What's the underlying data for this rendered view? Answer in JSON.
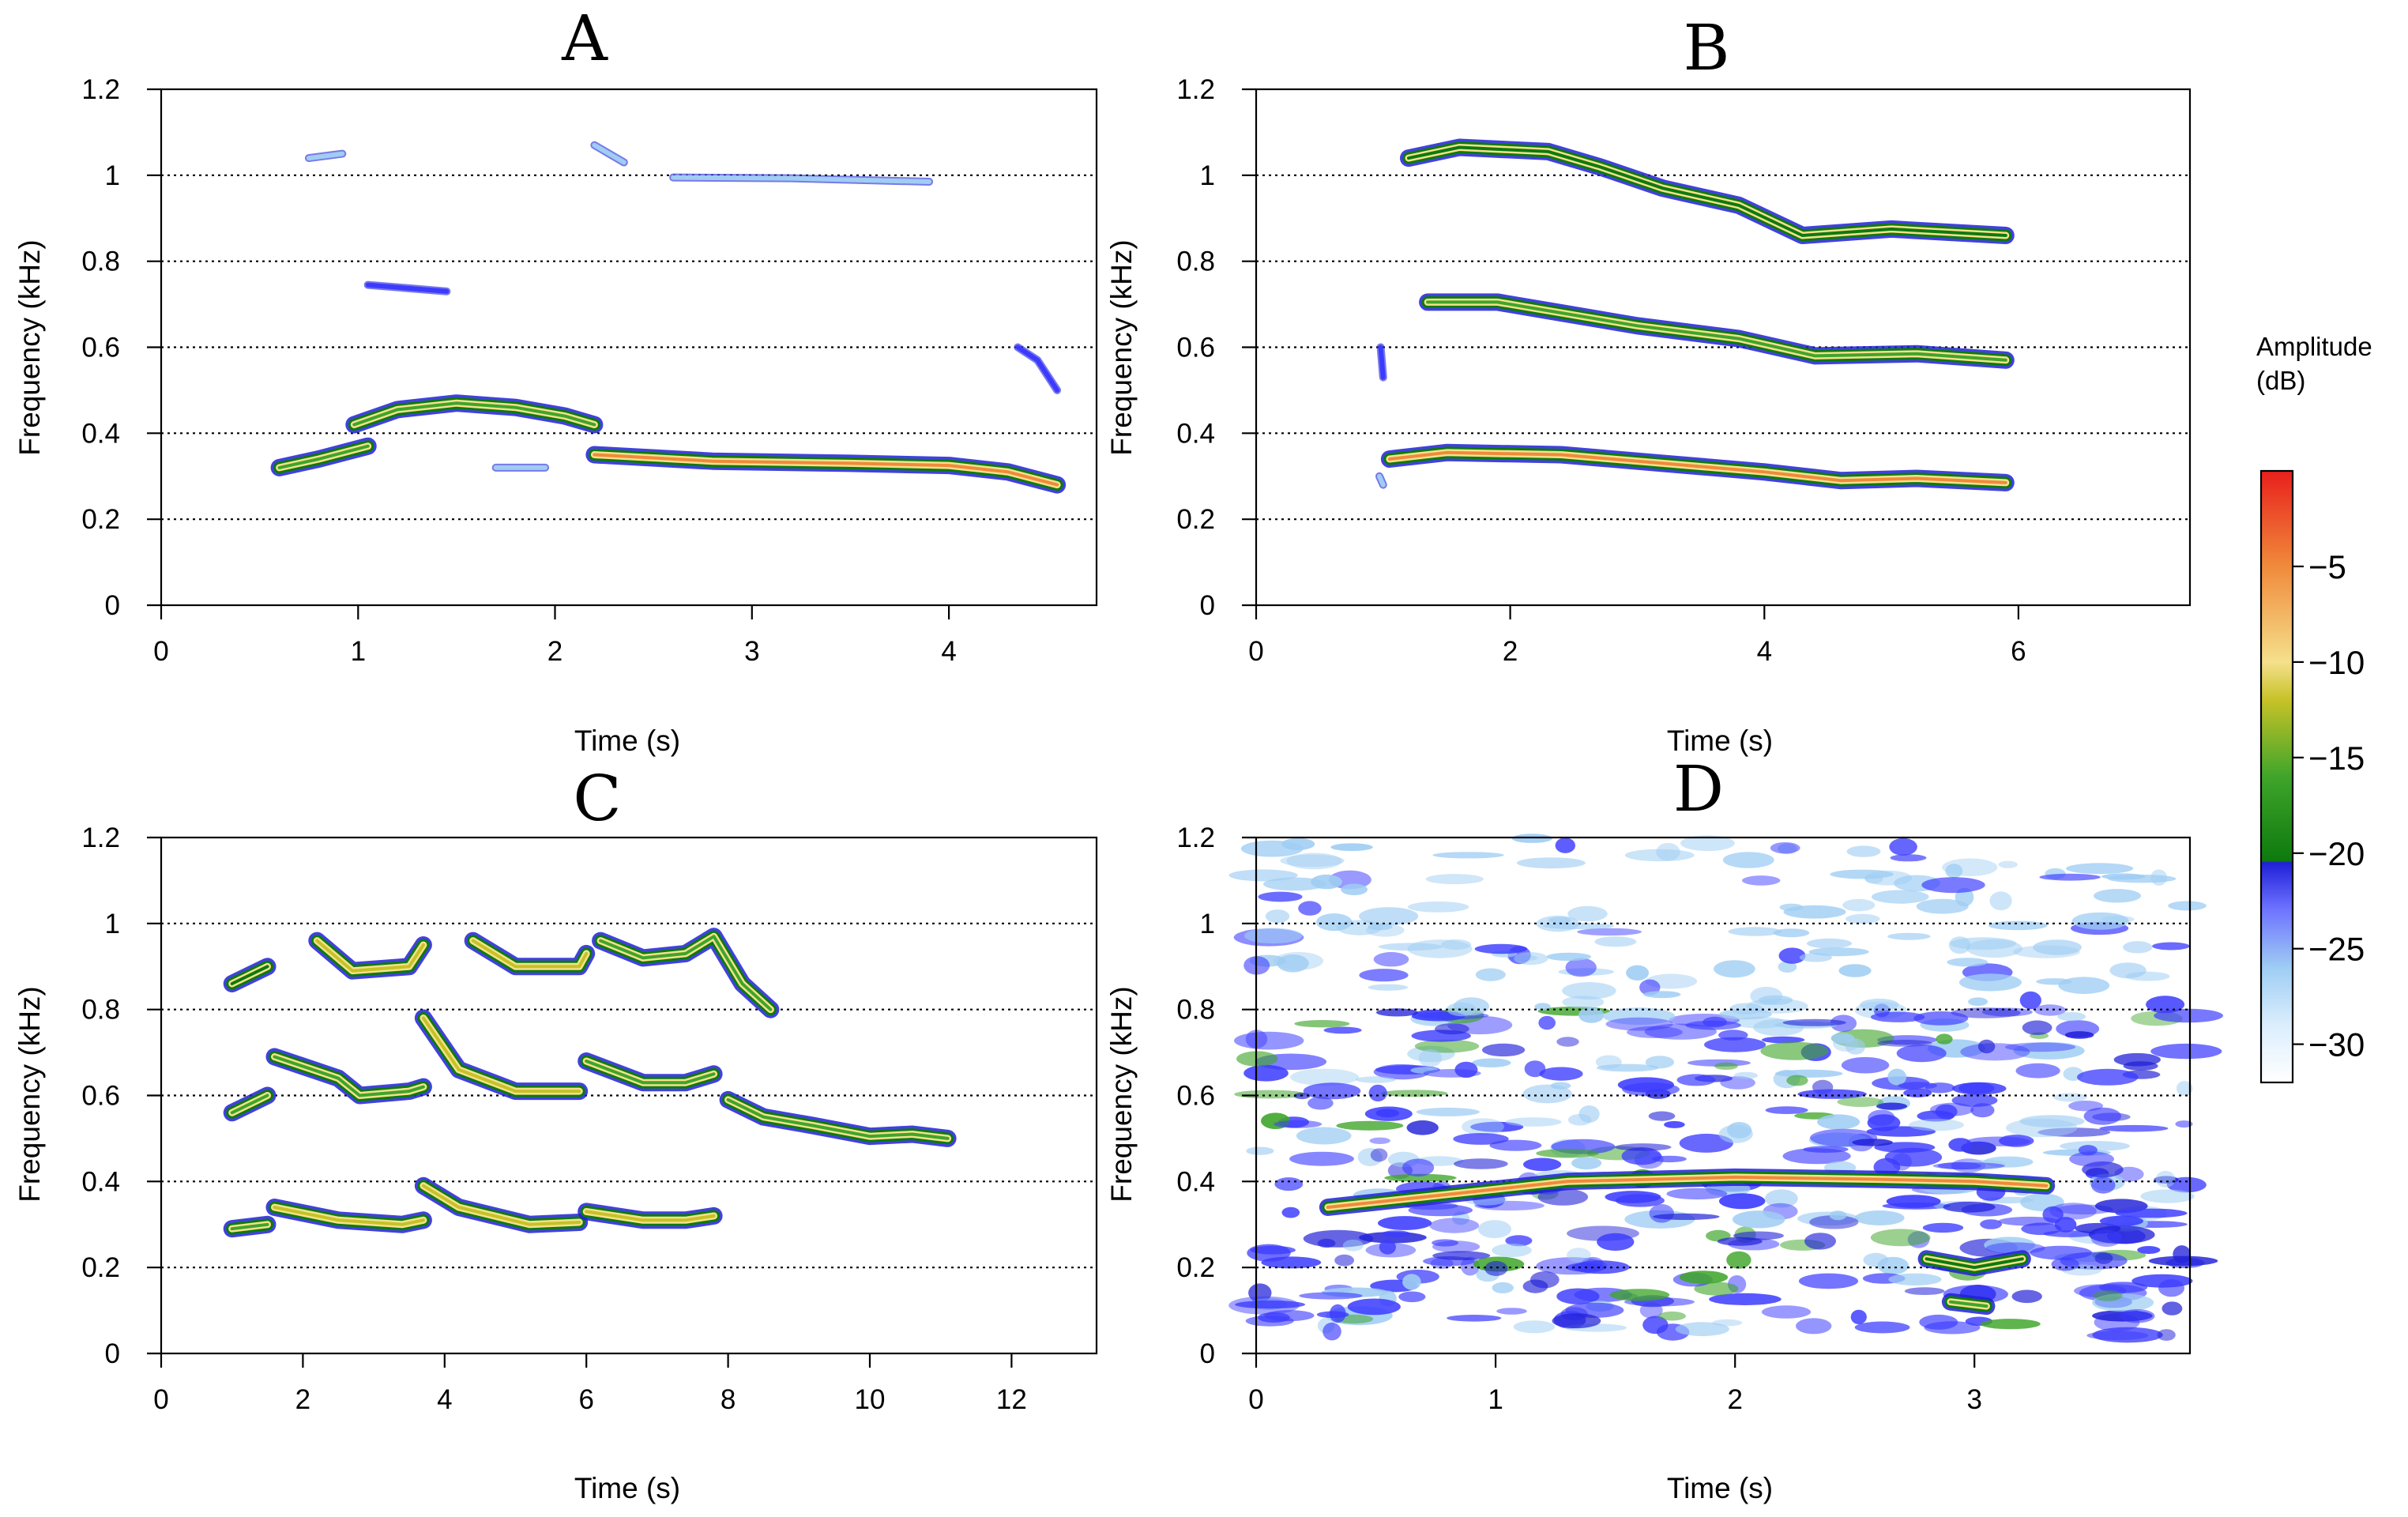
{
  "chart_data": [
    {
      "type": "spectrogram",
      "panel": "A",
      "title": "A",
      "xlabel": "Time (s)",
      "ylabel": "Frequency (kHz)",
      "xlim": [
        0,
        4.75
      ],
      "ylim": [
        0,
        1.2
      ],
      "xticks": [
        0,
        1,
        2,
        3,
        4
      ],
      "yticks": [
        0,
        0.2,
        0.4,
        0.6,
        0.8,
        1,
        1.2
      ],
      "gridlines_y": [
        0.2,
        0.4,
        0.6,
        0.8,
        1.0
      ],
      "traces": [
        {
          "points": [
            [
              0.6,
              0.32
            ],
            [
              0.8,
              0.34
            ],
            [
              1.05,
              0.37
            ]
          ],
          "amplitude_db": -13
        },
        {
          "points": [
            [
              0.98,
              0.42
            ],
            [
              1.2,
              0.455
            ],
            [
              1.5,
              0.47
            ],
            [
              1.8,
              0.46
            ],
            [
              2.05,
              0.44
            ],
            [
              2.2,
              0.42
            ]
          ],
          "amplitude_db": -12
        },
        {
          "points": [
            [
              2.2,
              0.35
            ],
            [
              2.8,
              0.335
            ],
            [
              3.5,
              0.33
            ],
            [
              4.0,
              0.325
            ],
            [
              4.3,
              0.31
            ],
            [
              4.55,
              0.28
            ]
          ],
          "amplitude_db": -7
        },
        {
          "points": [
            [
              0.75,
              1.04
            ],
            [
              0.92,
              1.05
            ]
          ],
          "amplitude_db": -26
        },
        {
          "points": [
            [
              1.05,
              0.745
            ],
            [
              1.45,
              0.73
            ]
          ],
          "amplitude_db": -22
        },
        {
          "points": [
            [
              2.2,
              1.07
            ],
            [
              2.35,
              1.03
            ]
          ],
          "amplitude_db": -27
        },
        {
          "points": [
            [
              2.6,
              0.995
            ],
            [
              3.2,
              0.993
            ],
            [
              3.9,
              0.985
            ]
          ],
          "amplitude_db": -24
        },
        {
          "points": [
            [
              1.7,
              0.32
            ],
            [
              1.95,
              0.32
            ]
          ],
          "amplitude_db": -28
        },
        {
          "points": [
            [
              4.35,
              0.6
            ],
            [
              4.45,
              0.57
            ],
            [
              4.55,
              0.5
            ]
          ],
          "amplitude_db": -20
        }
      ]
    },
    {
      "type": "spectrogram",
      "panel": "B",
      "title": "B",
      "xlabel": "Time (s)",
      "ylabel": "Frequency (kHz)",
      "xlim": [
        0,
        7.35
      ],
      "ylim": [
        0,
        1.2
      ],
      "xticks": [
        0,
        2,
        4,
        6
      ],
      "yticks": [
        0,
        0.2,
        0.4,
        0.6,
        0.8,
        1,
        1.2
      ],
      "gridlines_y": [
        0.2,
        0.4,
        0.6,
        0.8,
        1.0
      ],
      "traces": [
        {
          "points": [
            [
              1.2,
              1.04
            ],
            [
              1.6,
              1.065
            ],
            [
              2.3,
              1.055
            ],
            [
              2.7,
              1.02
            ],
            [
              3.2,
              0.97
            ],
            [
              3.8,
              0.93
            ],
            [
              4.3,
              0.86
            ],
            [
              5.0,
              0.875
            ],
            [
              5.9,
              0.86
            ]
          ],
          "amplitude_db": -16
        },
        {
          "points": [
            [
              1.35,
              0.705
            ],
            [
              1.9,
              0.705
            ],
            [
              2.4,
              0.68
            ],
            [
              3.0,
              0.65
            ],
            [
              3.8,
              0.62
            ],
            [
              4.4,
              0.58
            ],
            [
              5.2,
              0.585
            ],
            [
              5.9,
              0.57
            ]
          ],
          "amplitude_db": -13
        },
        {
          "points": [
            [
              1.05,
              0.34
            ],
            [
              1.5,
              0.355
            ],
            [
              2.4,
              0.35
            ],
            [
              3.2,
              0.33
            ],
            [
              4.0,
              0.31
            ],
            [
              4.6,
              0.29
            ],
            [
              5.2,
              0.295
            ],
            [
              5.9,
              0.285
            ]
          ],
          "amplitude_db": -8
        },
        {
          "points": [
            [
              0.98,
              0.6
            ],
            [
              1.0,
              0.53
            ]
          ],
          "amplitude_db": -22
        },
        {
          "points": [
            [
              0.97,
              0.3
            ],
            [
              1.0,
              0.28
            ]
          ],
          "amplitude_db": -24
        }
      ]
    },
    {
      "type": "spectrogram",
      "panel": "C",
      "title": "C",
      "xlabel": "Time (s)",
      "ylabel": "Frequency (kHz)",
      "xlim": [
        0,
        13.2
      ],
      "ylim": [
        0,
        1.2
      ],
      "xticks": [
        0,
        2,
        4,
        6,
        8,
        10,
        12
      ],
      "yticks": [
        0,
        0.2,
        0.4,
        0.6,
        0.8,
        1,
        1.2
      ],
      "gridlines_y": [
        0.2,
        0.4,
        0.6,
        0.8,
        1.0
      ],
      "traces": [
        {
          "points": [
            [
              1.0,
              0.29
            ],
            [
              1.5,
              0.3
            ]
          ],
          "amplitude_db": -12
        },
        {
          "points": [
            [
              1.6,
              0.34
            ],
            [
              2.5,
              0.31
            ],
            [
              3.4,
              0.3
            ],
            [
              3.7,
              0.31
            ]
          ],
          "amplitude_db": -10
        },
        {
          "points": [
            [
              3.7,
              0.39
            ],
            [
              4.2,
              0.34
            ],
            [
              5.2,
              0.3
            ],
            [
              5.9,
              0.305
            ]
          ],
          "amplitude_db": -9
        },
        {
          "points": [
            [
              6.0,
              0.33
            ],
            [
              6.8,
              0.31
            ],
            [
              7.4,
              0.31
            ],
            [
              7.8,
              0.32
            ]
          ],
          "amplitude_db": -11
        },
        {
          "points": [
            [
              1.0,
              0.56
            ],
            [
              1.5,
              0.6
            ]
          ],
          "amplitude_db": -13
        },
        {
          "points": [
            [
              1.6,
              0.69
            ],
            [
              2.5,
              0.64
            ],
            [
              2.8,
              0.6
            ],
            [
              3.5,
              0.61
            ],
            [
              3.7,
              0.62
            ]
          ],
          "amplitude_db": -12
        },
        {
          "points": [
            [
              3.7,
              0.78
            ],
            [
              4.2,
              0.66
            ],
            [
              5.0,
              0.61
            ],
            [
              5.9,
              0.61
            ]
          ],
          "amplitude_db": -11
        },
        {
          "points": [
            [
              6.0,
              0.68
            ],
            [
              6.8,
              0.63
            ],
            [
              7.4,
              0.63
            ],
            [
              7.8,
              0.65
            ]
          ],
          "amplitude_db": -12
        },
        {
          "points": [
            [
              8.0,
              0.59
            ],
            [
              8.5,
              0.55
            ],
            [
              9.2,
              0.53
            ],
            [
              10.0,
              0.505
            ],
            [
              10.6,
              0.51
            ],
            [
              11.1,
              0.5
            ]
          ],
          "amplitude_db": -14
        },
        {
          "points": [
            [
              1.0,
              0.86
            ],
            [
              1.5,
              0.9
            ]
          ],
          "amplitude_db": -15
        },
        {
          "points": [
            [
              2.2,
              0.96
            ],
            [
              2.7,
              0.89
            ],
            [
              3.5,
              0.9
            ],
            [
              3.7,
              0.95
            ]
          ],
          "amplitude_db": -10
        },
        {
          "points": [
            [
              4.4,
              0.96
            ],
            [
              5.0,
              0.9
            ],
            [
              5.9,
              0.9
            ],
            [
              6.0,
              0.93
            ]
          ],
          "amplitude_db": -11
        },
        {
          "points": [
            [
              6.2,
              0.96
            ],
            [
              6.8,
              0.92
            ],
            [
              7.4,
              0.93
            ],
            [
              7.8,
              0.97
            ],
            [
              8.2,
              0.86
            ],
            [
              8.6,
              0.8
            ]
          ],
          "amplitude_db": -12
        }
      ]
    },
    {
      "type": "spectrogram",
      "panel": "D",
      "title": "D",
      "xlabel": "Time (s)",
      "ylabel": "Frequency (kHz)",
      "xlim": [
        0,
        3.9
      ],
      "ylim": [
        0,
        1.2
      ],
      "xticks": [
        0,
        1,
        2,
        3
      ],
      "yticks": [
        0,
        0.2,
        0.4,
        0.6,
        0.8,
        1,
        1.2
      ],
      "gridlines_y": [
        0.2,
        0.4,
        0.6,
        0.8,
        1.0
      ],
      "noise": {
        "dense_below_khz": 0.8,
        "sparse_above_khz": 0.8,
        "time_range": [
          0,
          3.9
        ]
      },
      "traces": [
        {
          "points": [
            [
              0.3,
              0.34
            ],
            [
              0.8,
              0.37
            ],
            [
              1.3,
              0.4
            ],
            [
              2.0,
              0.41
            ],
            [
              2.6,
              0.405
            ],
            [
              3.0,
              0.4
            ],
            [
              3.3,
              0.39
            ]
          ],
          "amplitude_db": -8
        },
        {
          "points": [
            [
              2.8,
              0.22
            ],
            [
              3.0,
              0.2
            ],
            [
              3.2,
              0.22
            ]
          ],
          "amplitude_db": -17
        },
        {
          "points": [
            [
              2.9,
              0.12
            ],
            [
              3.05,
              0.11
            ]
          ],
          "amplitude_db": -12
        }
      ]
    }
  ],
  "legend": {
    "title_line1": "Amplitude",
    "title_line2": "(dB)",
    "range_db": [
      -32,
      0
    ],
    "ticks": [
      {
        "value": -5,
        "label": "−5"
      },
      {
        "value": -10,
        "label": "−10"
      },
      {
        "value": -15,
        "label": "−15"
      },
      {
        "value": -20,
        "label": "−20"
      },
      {
        "value": -25,
        "label": "−25"
      },
      {
        "value": -30,
        "label": "−30"
      }
    ],
    "colors": {
      "white": "#ffffff",
      "light_blue": "#9fcdf3",
      "blue": "#3b3bff",
      "dark_blue": "#2020d8",
      "dark_green": "#0e7a0e",
      "green": "#3fa52a",
      "olive": "#c6c227",
      "pale_yellow": "#f5e08c",
      "orange": "#f08a3b",
      "red": "#e8201c"
    }
  }
}
